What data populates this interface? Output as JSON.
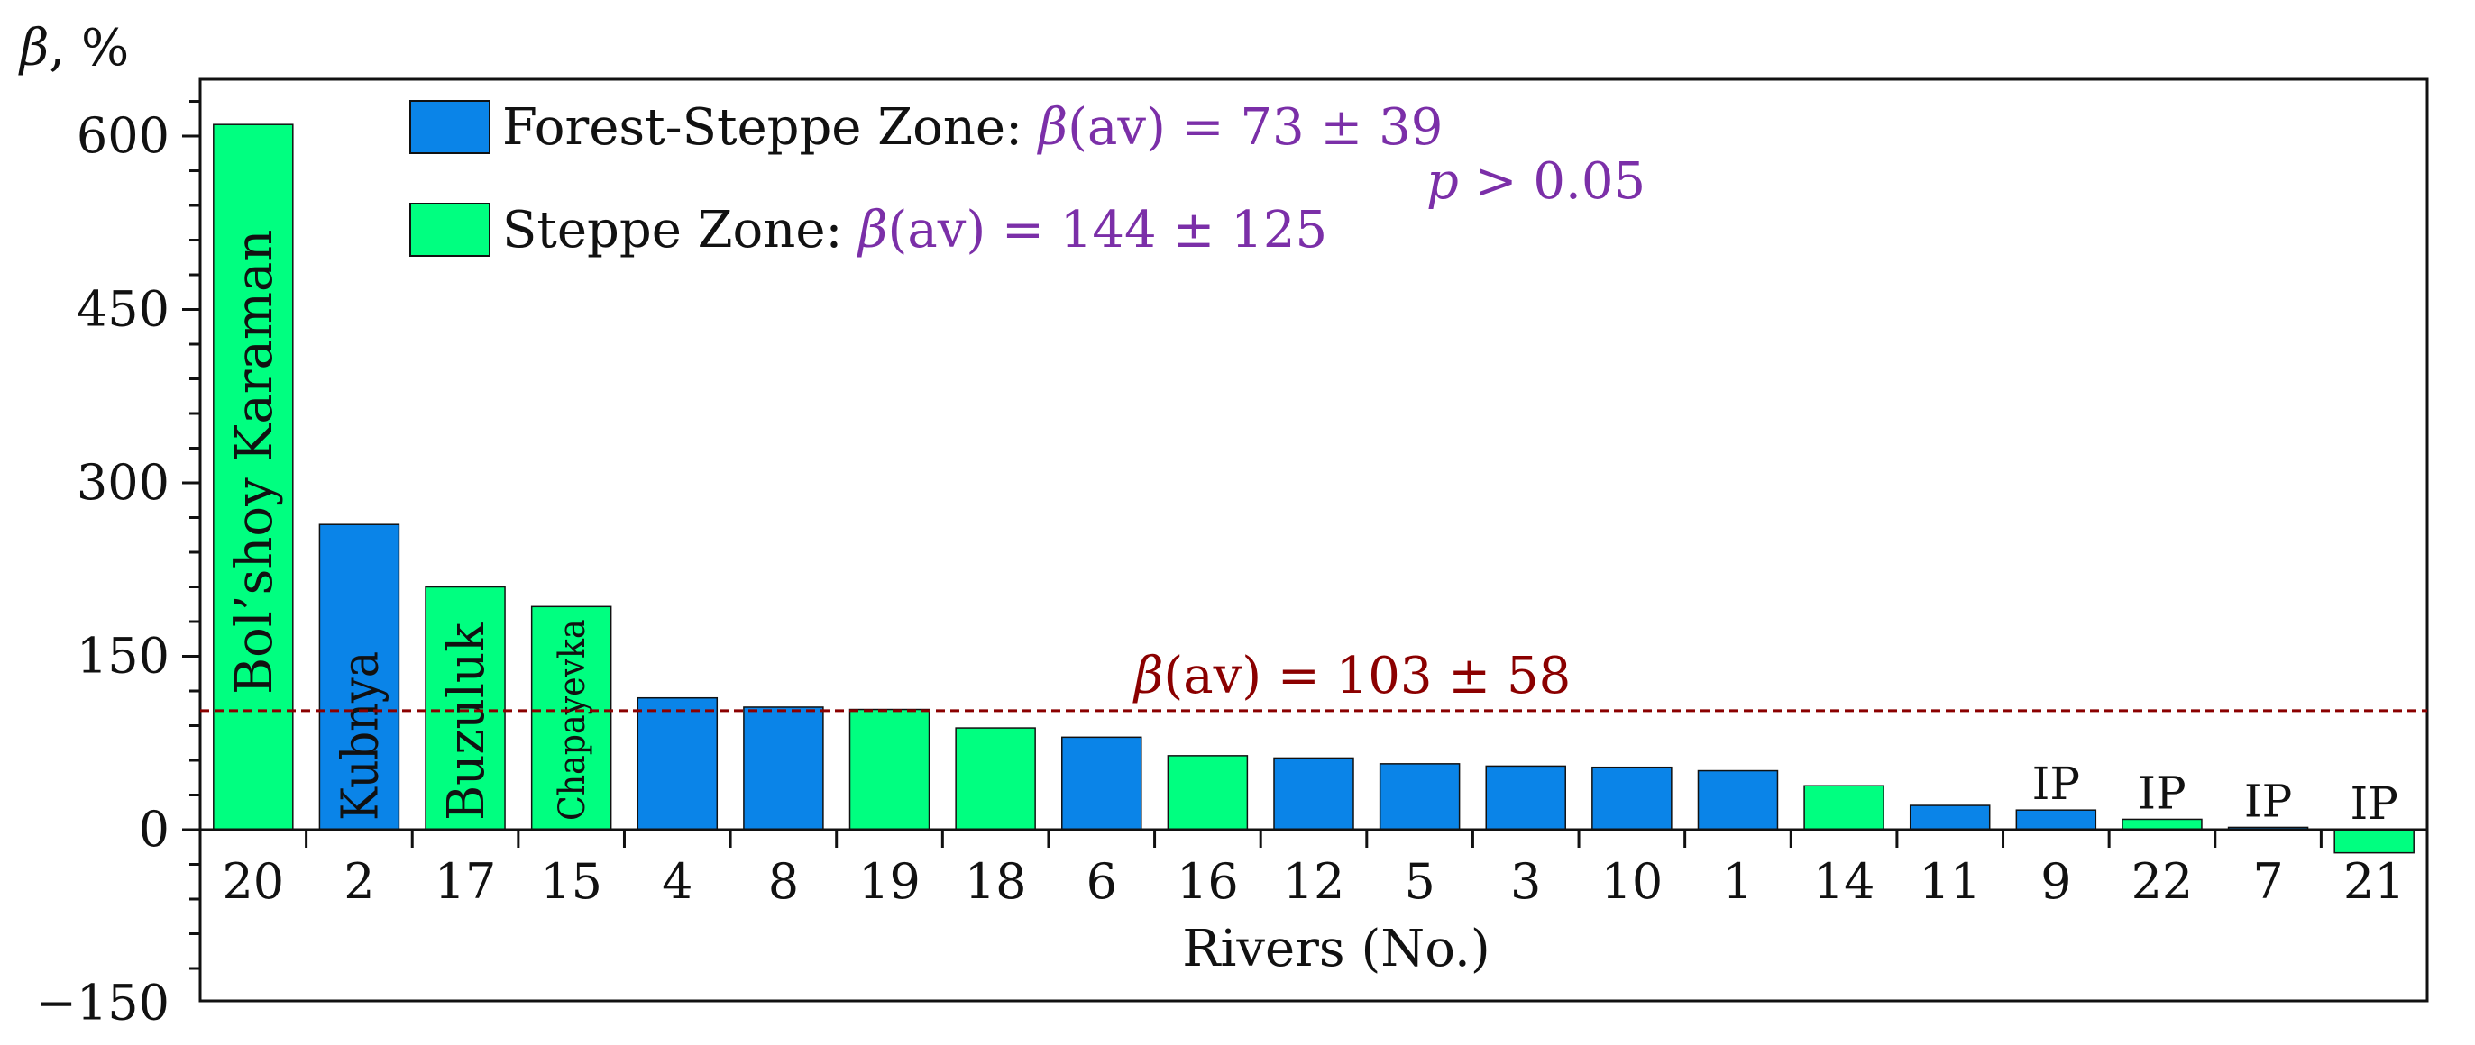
{
  "chart_data": {
    "type": "bar",
    "xlabel": "Rivers (No.)",
    "ylabel_symbol": "β",
    "ylabel_unit": ", %",
    "ylim": [
      -150,
      650
    ],
    "yticks": [
      600,
      450,
      300,
      150,
      0,
      -150
    ],
    "ytick_labels": [
      "600",
      "450",
      "300",
      "150",
      "0",
      "−150"
    ],
    "grid": false,
    "legend_placement": "top-left",
    "categories": [
      "20",
      "2",
      "17",
      "15",
      "4",
      "8",
      "19",
      "18",
      "6",
      "16",
      "12",
      "5",
      "3",
      "10",
      "1",
      "14",
      "11",
      "9",
      "22",
      "7",
      "21"
    ],
    "values": [
      610,
      264,
      210,
      193,
      114,
      106,
      104,
      88,
      80,
      64,
      62,
      57,
      55,
      54,
      51,
      38,
      21,
      17,
      9,
      2,
      -20
    ],
    "zones": [
      "Steppe",
      "Forest-Steppe",
      "Steppe",
      "Steppe",
      "Forest-Steppe",
      "Forest-Steppe",
      "Steppe",
      "Steppe",
      "Forest-Steppe",
      "Steppe",
      "Forest-Steppe",
      "Forest-Steppe",
      "Forest-Steppe",
      "Forest-Steppe",
      "Forest-Steppe",
      "Steppe",
      "Forest-Steppe",
      "Forest-Steppe",
      "Steppe",
      "Forest-Steppe",
      "Steppe"
    ],
    "bar_names": [
      "Bol’shoy Karaman",
      "Kubnya",
      "Buzuluk",
      "Chapayevka",
      "",
      "",
      "",
      "",
      "",
      "",
      "",
      "",
      "",
      "",
      "",
      "",
      "",
      "",
      "",
      "",
      ""
    ],
    "bar_annotations": [
      "",
      "",
      "",
      "",
      "",
      "",
      "",
      "",
      "",
      "",
      "",
      "",
      "",
      "",
      "",
      "",
      "",
      "IP",
      "IP",
      "IP",
      "IP"
    ],
    "series": [
      {
        "name": "Forest-Steppe Zone",
        "color": "#0A84E8",
        "stat_prefix": "β",
        "stat_text": "(av) = 73 ± 39"
      },
      {
        "name": "Steppe Zone",
        "color": "#00FF80",
        "stat_prefix": "β",
        "stat_text": "(av) = 144 ± 125"
      }
    ],
    "stat_color": "#7B2FA8",
    "p_value": {
      "symbol": "p",
      "text": " > 0.05"
    },
    "reference_line": {
      "value": 103,
      "symbol": "β",
      "text": "(av) = 103 ± 58",
      "color": "#8B0000"
    }
  }
}
